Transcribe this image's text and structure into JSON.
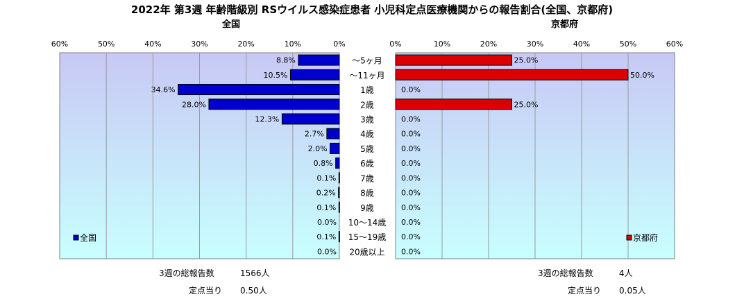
{
  "title": "2022年 第3週 年齢階級別 RSウイルス感染症患者 小児科定点医療機関からの報告割合(全国、京都府)",
  "left_subtitle": "全国",
  "right_subtitle": "京都府",
  "colors": {
    "national": "#0000cc",
    "kyoto": "#dd0000",
    "plot_top": "#c8c8f4",
    "plot_bottom": "#c8ffff"
  },
  "footer": {
    "national_total_label": "3週の総報告数",
    "national_total_value": "1566人",
    "national_per_label": "定点当り",
    "national_per_value": "0.50人",
    "kyoto_total_label": "3週の総報告数",
    "kyoto_total_value": "4人",
    "kyoto_per_label": "定点当り",
    "kyoto_per_value": "0.05人"
  },
  "chart_data": [
    {
      "type": "bar",
      "orientation": "horizontal",
      "direction": "right-to-left",
      "title": "全国",
      "categories": [
        "～5ヶ月",
        "～11ヶ月",
        "1歳",
        "2歳",
        "3歳",
        "4歳",
        "5歳",
        "6歳",
        "7歳",
        "8歳",
        "9歳",
        "10～14歳",
        "15～19歳",
        "20歳以上"
      ],
      "series": [
        {
          "name": "全国",
          "values": [
            8.8,
            10.5,
            34.6,
            28.0,
            12.3,
            2.7,
            2.0,
            0.8,
            0.1,
            0.2,
            0.1,
            0.0,
            0.1,
            0.0
          ],
          "labels": [
            "8.8%",
            "10.5%",
            "34.6%",
            "28.0%",
            "12.3%",
            "2.7%",
            "2.0%",
            "0.8%",
            "0.1%",
            "0.2%",
            "0.1%",
            "0.0%",
            "0.1%",
            "0.0%"
          ]
        }
      ],
      "xlim": [
        0,
        60
      ],
      "ticks": [
        "60%",
        "50%",
        "40%",
        "30%",
        "20%",
        "10%",
        "0%"
      ],
      "grid": true,
      "legend": "bottom-left"
    },
    {
      "type": "bar",
      "orientation": "horizontal",
      "direction": "left-to-right",
      "title": "京都府",
      "categories": [
        "～5ヶ月",
        "～11ヶ月",
        "1歳",
        "2歳",
        "3歳",
        "4歳",
        "5歳",
        "6歳",
        "7歳",
        "8歳",
        "9歳",
        "10～14歳",
        "15～19歳",
        "20歳以上"
      ],
      "series": [
        {
          "name": "京都府",
          "values": [
            25.0,
            50.0,
            0.0,
            25.0,
            0.0,
            0.0,
            0.0,
            0.0,
            0.0,
            0.0,
            0.0,
            0.0,
            0.0,
            0.0
          ],
          "labels": [
            "25.0%",
            "50.0%",
            "0.0%",
            "25.0%",
            "0.0%",
            "0.0%",
            "0.0%",
            "0.0%",
            "0.0%",
            "0.0%",
            "0.0%",
            "0.0%",
            "0.0%",
            "0.0%"
          ]
        }
      ],
      "xlim": [
        0,
        60
      ],
      "ticks": [
        "0%",
        "10%",
        "20%",
        "30%",
        "40%",
        "50%",
        "60%"
      ],
      "grid": true,
      "legend": "bottom-right"
    }
  ]
}
